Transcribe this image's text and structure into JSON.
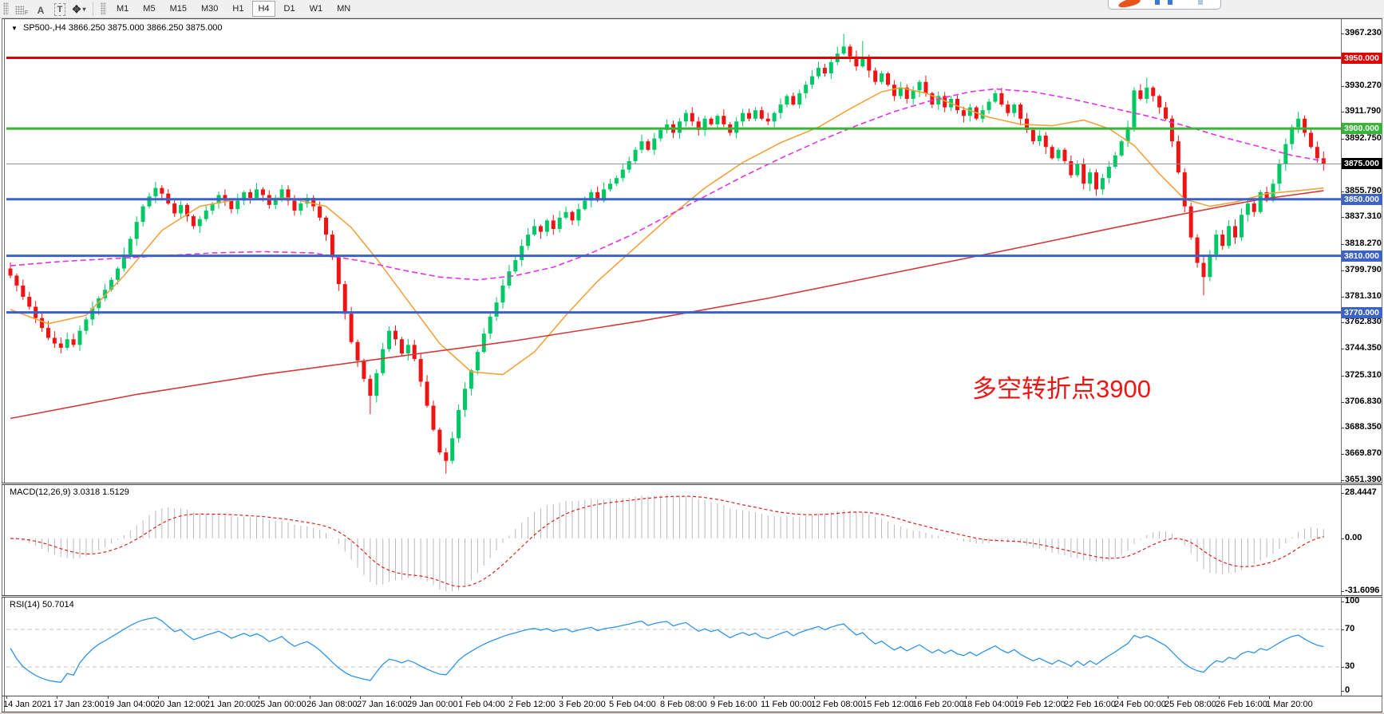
{
  "toolbar": {
    "icons": {
      "dock_sub": "F",
      "annotate_a": "A",
      "annotate_t": "T",
      "arrows": "✥",
      "caret": "▾"
    },
    "timeframes": [
      "M1",
      "M5",
      "M15",
      "M30",
      "H1",
      "H4",
      "D1",
      "W1",
      "MN"
    ],
    "active_timeframe": "H4"
  },
  "main_chart": {
    "symbol": "SP500-,H4",
    "ohlc": "3866.250 3875.000 3866.250 3875.000",
    "annotation": {
      "text": "多空转折点3900",
      "color": "#f01515"
    },
    "hlines": [
      {
        "price": 3950.0,
        "label": "3950.000",
        "color": "#e00000",
        "width": 3
      },
      {
        "price": 3900.0,
        "label": "3900.000",
        "color": "#38b438",
        "width": 3
      },
      {
        "price": 3875.0,
        "label": "3875.000",
        "color": "#909090",
        "width": 1,
        "badge_color": "#000000"
      },
      {
        "price": 3850.0,
        "label": "3850.000",
        "color": "#3a62c8",
        "width": 3
      },
      {
        "price": 3810.0,
        "label": "3810.000",
        "color": "#3a62c8",
        "width": 3
      },
      {
        "price": 3770.0,
        "label": "3770.000",
        "color": "#3a62c8",
        "width": 3
      }
    ],
    "y_axis_labels": [
      "3967.230",
      "3930.270",
      "3911.790",
      "3892.750",
      "3855.790",
      "3837.310",
      "3818.270",
      "3799.790",
      "3781.310",
      "3762.830",
      "3744.350",
      "3725.310",
      "3706.830",
      "3688.350",
      "3669.870",
      "3651.390"
    ]
  },
  "macd_panel": {
    "label": "MACD(12,26,9) 3.0318 1.5129",
    "axis_labels": [
      "28.4447",
      "0.00",
      "-31.6096"
    ]
  },
  "rsi_panel": {
    "label": "RSI(14) 50.7014",
    "axis_labels": [
      "100",
      "70",
      "30",
      "0"
    ],
    "levels": [
      70,
      30
    ]
  },
  "chart_data": {
    "type": "candlestick",
    "title": "SP500-,H4",
    "current_bar": {
      "open": 3866.25,
      "high": 3875.0,
      "low": 3866.25,
      "close": 3875.0
    },
    "ylim": [
      3651.39,
      3967.23
    ],
    "closes": [
      3796,
      3789,
      3781,
      3774,
      3766,
      3759,
      3752,
      3748,
      3745,
      3751,
      3747,
      3757,
      3765,
      3773,
      3780,
      3786,
      3793,
      3801,
      3811,
      3822,
      3834,
      3845,
      3852,
      3858,
      3854,
      3847,
      3840,
      3846,
      3838,
      3831,
      3836,
      3842,
      3847,
      3853,
      3849,
      3843,
      3849,
      3855,
      3851,
      3857,
      3853,
      3846,
      3851,
      3857,
      3849,
      3842,
      3847,
      3851,
      3845,
      3837,
      3825,
      3809,
      3790,
      3769,
      3749,
      3736,
      3723,
      3711,
      3727,
      3744,
      3757,
      3751,
      3741,
      3747,
      3737,
      3721,
      3704,
      3687,
      3671,
      3665,
      3681,
      3701,
      3716,
      3729,
      3742,
      3755,
      3767,
      3777,
      3789,
      3799,
      3807,
      3817,
      3825,
      3831,
      3827,
      3835,
      3829,
      3837,
      3841,
      3835,
      3843,
      3849,
      3855,
      3849,
      3857,
      3861,
      3865,
      3871,
      3877,
      3885,
      3891,
      3885,
      3893,
      3899,
      3903,
      3897,
      3905,
      3911,
      3905,
      3899,
      3907,
      3903,
      3909,
      3903,
      3897,
      3905,
      3911,
      3907,
      3913,
      3907,
      3905,
      3911,
      3917,
      3923,
      3917,
      3925,
      3931,
      3937,
      3943,
      3939,
      3947,
      3953,
      3958,
      3951,
      3944,
      3950,
      3941,
      3933,
      3939,
      3931,
      3923,
      3929,
      3921,
      3927,
      3933,
      3925,
      3917,
      3923,
      3915,
      3921,
      3913,
      3909,
      3915,
      3907,
      3913,
      3919,
      3925,
      3917,
      3911,
      3917,
      3907,
      3899,
      3891,
      3895,
      3887,
      3879,
      3885,
      3877,
      3867,
      3875,
      3861,
      3869,
      3857,
      3865,
      3873,
      3881,
      3891,
      3901,
      3927,
      3921,
      3929,
      3923,
      3915,
      3907,
      3891,
      3869,
      3845,
      3823,
      3805,
      3795,
      3811,
      3825,
      3817,
      3831,
      3823,
      3839,
      3847,
      3841,
      3855,
      3849,
      3861,
      3875,
      3889,
      3901,
      3907,
      3897,
      3887,
      3879,
      3875
    ],
    "wick_overrides": {
      "8": {
        "low": 3741
      },
      "57": {
        "low": 3698
      },
      "69": {
        "low": 3656
      },
      "132": {
        "high": 3967
      },
      "135": {
        "high": 3962
      },
      "180": {
        "high": 3936
      },
      "189": {
        "low": 3782
      }
    },
    "moving_averages": [
      {
        "name": "ma-fast-orange",
        "color": "#f2a33c",
        "dash": "",
        "points": [
          [
            0,
            3772
          ],
          [
            6,
            3762
          ],
          [
            12,
            3768
          ],
          [
            18,
            3796
          ],
          [
            24,
            3828
          ],
          [
            30,
            3845
          ],
          [
            36,
            3850
          ],
          [
            44,
            3851
          ],
          [
            50,
            3845
          ],
          [
            54,
            3830
          ],
          [
            58,
            3808
          ],
          [
            63,
            3778
          ],
          [
            68,
            3748
          ],
          [
            73,
            3728
          ],
          [
            78,
            3726
          ],
          [
            83,
            3742
          ],
          [
            88,
            3768
          ],
          [
            93,
            3792
          ],
          [
            98,
            3812
          ],
          [
            104,
            3836
          ],
          [
            110,
            3858
          ],
          [
            116,
            3876
          ],
          [
            122,
            3890
          ],
          [
            128,
            3901
          ],
          [
            133,
            3914
          ],
          [
            138,
            3926
          ],
          [
            141,
            3929
          ],
          [
            145,
            3925
          ],
          [
            150,
            3916
          ],
          [
            155,
            3908
          ],
          [
            160,
            3903
          ],
          [
            165,
            3902
          ],
          [
            170,
            3906
          ],
          [
            174,
            3900
          ],
          [
            178,
            3888
          ],
          [
            182,
            3868
          ],
          [
            186,
            3850
          ],
          [
            190,
            3845
          ],
          [
            194,
            3848
          ],
          [
            199,
            3854
          ],
          [
            204,
            3856
          ],
          [
            208,
            3858
          ]
        ]
      },
      {
        "name": "ma-mid-magenta",
        "color": "#e531e5",
        "dash": "7,4",
        "points": [
          [
            0,
            3803
          ],
          [
            8,
            3806
          ],
          [
            16,
            3808
          ],
          [
            24,
            3810
          ],
          [
            32,
            3812
          ],
          [
            40,
            3813
          ],
          [
            48,
            3812
          ],
          [
            56,
            3806
          ],
          [
            62,
            3800
          ],
          [
            68,
            3795
          ],
          [
            74,
            3793
          ],
          [
            80,
            3796
          ],
          [
            86,
            3802
          ],
          [
            92,
            3812
          ],
          [
            98,
            3824
          ],
          [
            104,
            3838
          ],
          [
            110,
            3852
          ],
          [
            116,
            3866
          ],
          [
            122,
            3879
          ],
          [
            128,
            3891
          ],
          [
            134,
            3902
          ],
          [
            140,
            3912
          ],
          [
            146,
            3920
          ],
          [
            152,
            3926
          ],
          [
            156,
            3928
          ],
          [
            162,
            3926
          ],
          [
            168,
            3921
          ],
          [
            174,
            3915
          ],
          [
            180,
            3909
          ],
          [
            186,
            3902
          ],
          [
            192,
            3894
          ],
          [
            198,
            3887
          ],
          [
            203,
            3881
          ],
          [
            208,
            3877
          ]
        ]
      },
      {
        "name": "ma-slow-red",
        "color": "#d23a3a",
        "dash": "",
        "points": [
          [
            0,
            3695
          ],
          [
            20,
            3712
          ],
          [
            40,
            3726
          ],
          [
            60,
            3738
          ],
          [
            80,
            3750
          ],
          [
            100,
            3764
          ],
          [
            120,
            3780
          ],
          [
            140,
            3798
          ],
          [
            160,
            3816
          ],
          [
            175,
            3830
          ],
          [
            185,
            3839
          ],
          [
            192,
            3845
          ],
          [
            198,
            3850
          ],
          [
            203,
            3853
          ],
          [
            208,
            3856
          ]
        ]
      }
    ],
    "indicators": [
      {
        "name": "MACD",
        "params": [
          12,
          26,
          9
        ],
        "values": [
          3.0318,
          1.5129
        ],
        "axis_range": [
          -31.6096,
          28.4447
        ]
      },
      {
        "name": "RSI",
        "params": [
          14
        ],
        "value": 50.7014,
        "range": [
          0,
          100
        ],
        "levels": [
          30,
          70
        ]
      }
    ],
    "x_labels": [
      "14 Jan 2021",
      "17 Jan 23:00",
      "19 Jan 04:00",
      "20 Jan 12:00",
      "21 Jan 20:00",
      "25 Jan 00:00",
      "26 Jan 08:00",
      "27 Jan 16:00",
      "29 Jan 00:00",
      "1 Feb 04:00",
      "2 Feb 12:00",
      "3 Feb 20:00",
      "5 Feb 04:00",
      "8 Feb 08:00",
      "9 Feb 16:00",
      "11 Feb 00:00",
      "12 Feb 08:00",
      "15 Feb 12:00",
      "16 Feb 20:00",
      "18 Feb 04:00",
      "19 Feb 12:00",
      "22 Feb 16:00",
      "24 Feb 00:00",
      "25 Feb 08:00",
      "26 Feb 16:00",
      "1 Mar 20:00"
    ],
    "colors": {
      "up": "#00c864",
      "down": "#ee1414",
      "macd_hist": "#b8b8b8",
      "macd_signal": "#e02020",
      "rsi_line": "#2f94e8",
      "level_dash": "#c0c0c0"
    }
  }
}
